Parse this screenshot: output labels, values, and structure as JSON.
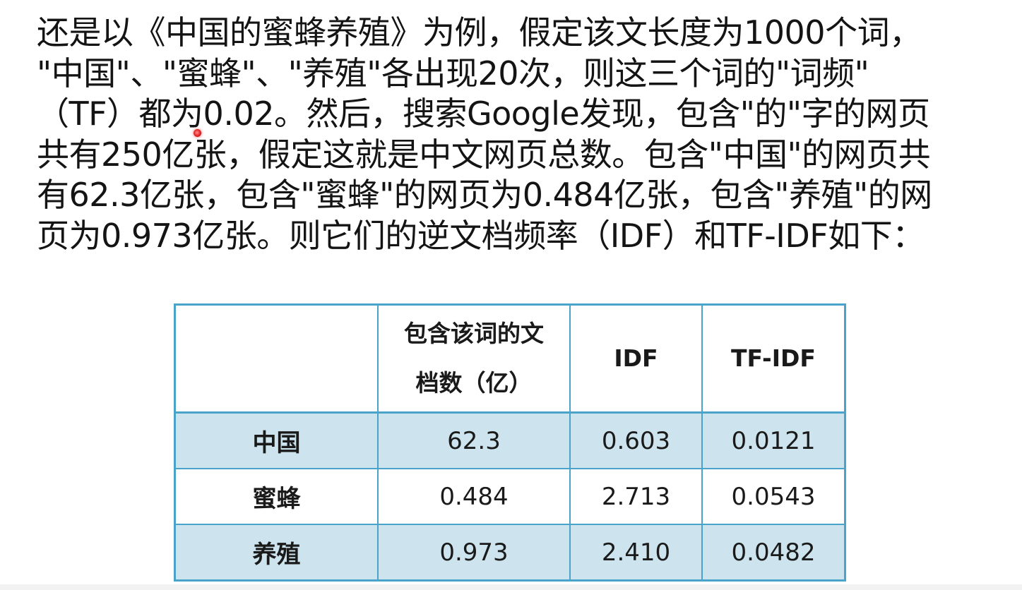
{
  "paragraph": {
    "lines": [
      "还是以《中国的蜜蜂养殖》为例，假定该文长度为1000个词，",
      "\"中国\"、\"蜜蜂\"、\"养殖\"各出现20次，则这三个词的\"词频\"",
      "（TF）都为0.02。然后，搜索Google发现，包含\"的\"字的网页",
      "共有250亿张，假定这就是中文网页总数。包含\"中国\"的网页共",
      "有62.3亿张，包含\"蜜蜂\"的网页为0.484亿张，包含\"养殖\"的网",
      "页为0.973亿张。则它们的逆文档频率（IDF）和TF-IDF如下："
    ]
  },
  "table": {
    "headers": [
      "",
      "包含该词的文档数（亿）",
      "IDF",
      "TF-IDF"
    ],
    "rows": [
      {
        "term": "中国",
        "docs": "62.3",
        "idf": "0.603",
        "tfidf": "0.0121"
      },
      {
        "term": "蜜蜂",
        "docs": "0.484",
        "idf": "2.713",
        "tfidf": "0.0543"
      },
      {
        "term": "养殖",
        "docs": "0.973",
        "idf": "2.410",
        "tfidf": "0.0482"
      }
    ]
  },
  "colors": {
    "table_border": "#4aa3c8",
    "row_shade": "#cde4ee",
    "laser_pointer": "#e02020"
  }
}
